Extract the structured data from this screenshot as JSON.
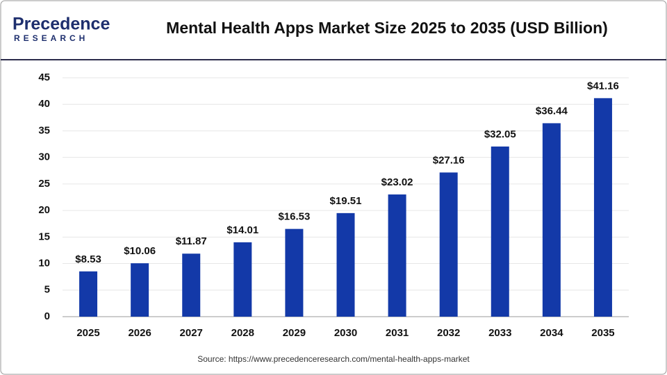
{
  "logo": {
    "name": "Precedence",
    "sub": "RESEARCH"
  },
  "chart_data": {
    "type": "bar",
    "title": "Mental Health Apps Market Size 2025 to 2035 (USD Billion)",
    "categories": [
      "2025",
      "2026",
      "2027",
      "2028",
      "2029",
      "2030",
      "2031",
      "2032",
      "2033",
      "2034",
      "2035"
    ],
    "values": [
      8.53,
      10.06,
      11.87,
      14.01,
      16.53,
      19.51,
      23.02,
      27.16,
      32.05,
      36.44,
      41.16
    ],
    "value_labels": [
      "$8.53",
      "$10.06",
      "$11.87",
      "$14.01",
      "$16.53",
      "$19.51",
      "$23.02",
      "$27.16",
      "$32.05",
      "$36.44",
      "$41.16"
    ],
    "color": "#1339a8",
    "ylim": [
      0,
      45
    ],
    "yticks": [
      0,
      5,
      10,
      15,
      20,
      25,
      30,
      35,
      40,
      45
    ],
    "grid": true,
    "source": "Source: https://www.precedenceresearch.com/mental-health-apps-market"
  }
}
